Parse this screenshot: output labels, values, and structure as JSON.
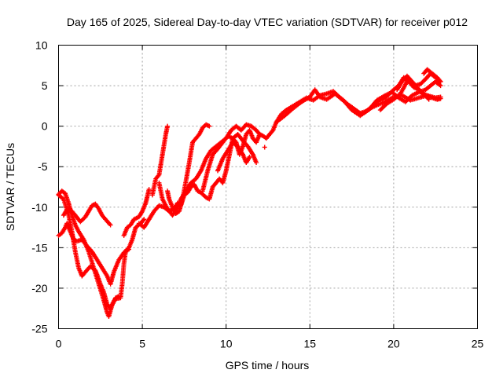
{
  "chart_data": {
    "type": "scatter",
    "title": "Day 165 of 2025, Sidereal Day-to-day VTEC variation (SDTVAR) for receiver p012",
    "xlabel": "GPS time / hours",
    "ylabel": "SDTVAR / TECUs",
    "xlim": [
      0,
      25
    ],
    "ylim": [
      -25,
      10
    ],
    "xticks": [
      0,
      5,
      10,
      15,
      20,
      25
    ],
    "yticks": [
      -25,
      -20,
      -15,
      -10,
      -5,
      0,
      5,
      10
    ],
    "grid": true,
    "marker": "+",
    "color": "#ff0000",
    "series": [
      {
        "tracks": [
          [
            [
              0.0,
              -8.4
            ],
            [
              0.2,
              -8.0
            ],
            [
              0.4,
              -8.3
            ],
            [
              0.6,
              -9.5
            ],
            [
              0.8,
              -11.0
            ],
            [
              1.0,
              -12.2
            ],
            [
              1.2,
              -13.0
            ],
            [
              1.5,
              -14.0
            ],
            [
              1.8,
              -15.5
            ],
            [
              2.1,
              -17.5
            ],
            [
              2.4,
              -19.5
            ],
            [
              2.7,
              -21.5
            ],
            [
              2.9,
              -23.0
            ],
            [
              3.0,
              -23.5
            ],
            [
              3.2,
              -22.0
            ],
            [
              3.4,
              -21.3
            ],
            [
              3.7,
              -21.2
            ],
            [
              3.8,
              -19.5
            ],
            [
              3.9,
              -17.0
            ],
            [
              4.0,
              -15.5
            ],
            [
              4.2,
              -15.2
            ]
          ],
          [
            [
              0.0,
              -8.5
            ],
            [
              0.3,
              -9.0
            ],
            [
              0.6,
              -11.0
            ],
            [
              0.8,
              -13.0
            ],
            [
              1.0,
              -15.5
            ],
            [
              1.2,
              -17.5
            ],
            [
              1.4,
              -18.5
            ],
            [
              1.6,
              -18.0
            ],
            [
              1.9,
              -17.3
            ],
            [
              2.2,
              -17.8
            ],
            [
              2.5,
              -19.5
            ],
            [
              2.7,
              -20.5
            ],
            [
              2.9,
              -22.0
            ],
            [
              3.1,
              -22.5
            ],
            [
              3.4,
              -21.2
            ],
            [
              3.6,
              -21.0
            ]
          ],
          [
            [
              0.0,
              -13.5
            ],
            [
              0.2,
              -13.2
            ],
            [
              0.4,
              -12.5
            ],
            [
              0.5,
              -12.0
            ],
            [
              0.7,
              -13.0
            ],
            [
              0.9,
              -14.0
            ],
            [
              1.1,
              -14.2
            ],
            [
              1.4,
              -14.0
            ],
            [
              1.7,
              -14.8
            ],
            [
              2.0,
              -15.5
            ],
            [
              2.3,
              -16.5
            ],
            [
              2.6,
              -17.5
            ],
            [
              2.9,
              -18.5
            ],
            [
              3.1,
              -19.5
            ],
            [
              3.3,
              -18.0
            ],
            [
              3.6,
              -16.5
            ],
            [
              3.9,
              -15.6
            ],
            [
              4.2,
              -15.0
            ],
            [
              4.4,
              -14.0
            ],
            [
              4.6,
              -12.5
            ],
            [
              4.9,
              -12.0
            ],
            [
              5.1,
              -11.5
            ]
          ],
          [
            [
              0.3,
              -11.0
            ],
            [
              0.5,
              -10.3
            ],
            [
              0.8,
              -10.5
            ],
            [
              1.0,
              -11.0
            ],
            [
              1.3,
              -11.8
            ],
            [
              1.6,
              -11.2
            ],
            [
              1.8,
              -10.5
            ],
            [
              2.0,
              -9.8
            ],
            [
              2.2,
              -9.6
            ],
            [
              2.4,
              -10.2
            ],
            [
              2.6,
              -11.0
            ],
            [
              2.8,
              -11.5
            ],
            [
              3.1,
              -12.2
            ]
          ],
          [
            [
              3.9,
              -13.5
            ],
            [
              4.1,
              -12.5
            ],
            [
              4.3,
              -12.2
            ],
            [
              4.5,
              -11.5
            ],
            [
              4.8,
              -11.2
            ],
            [
              5.0,
              -10.5
            ],
            [
              5.2,
              -9.5
            ],
            [
              5.4,
              -7.8
            ]
          ],
          [
            [
              4.8,
              -12.0
            ],
            [
              5.1,
              -12.5
            ],
            [
              5.4,
              -11.5
            ],
            [
              5.7,
              -10.5
            ],
            [
              6.0,
              -9.8
            ],
            [
              6.3,
              -10.0
            ],
            [
              6.6,
              -10.5
            ],
            [
              6.9,
              -10.2
            ],
            [
              7.1,
              -9.5
            ],
            [
              7.3,
              -9.8
            ],
            [
              7.5,
              -8.5
            ],
            [
              7.7,
              -8.2
            ],
            [
              7.9,
              -7.5
            ],
            [
              8.1,
              -7.2
            ],
            [
              8.3,
              -8.0
            ],
            [
              8.5,
              -8.2
            ],
            [
              8.8,
              -8.8
            ],
            [
              9.0,
              -9.0
            ],
            [
              9.2,
              -7.5
            ],
            [
              9.4,
              -7.0
            ],
            [
              9.6,
              -6.5
            ],
            [
              9.8,
              -7.0
            ],
            [
              10.0,
              -5.5
            ],
            [
              10.2,
              -3.5
            ],
            [
              10.4,
              -1.5
            ],
            [
              10.6,
              -2.0
            ],
            [
              10.8,
              -3.5
            ],
            [
              11.0,
              -2.5
            ],
            [
              11.2,
              -1.0
            ],
            [
              11.4,
              -0.5
            ],
            [
              11.6,
              -1.5
            ],
            [
              11.8,
              -2.0
            ],
            [
              12.0,
              -1.0
            ],
            [
              12.2,
              -1.2
            ],
            [
              12.4,
              -1.5
            ],
            [
              12.6,
              -1.0
            ],
            [
              12.8,
              -0.5
            ],
            [
              13.0,
              0.5
            ],
            [
              13.3,
              1.5
            ],
            [
              13.6,
              2.0
            ],
            [
              14.0,
              2.5
            ],
            [
              14.4,
              3.0
            ],
            [
              14.8,
              3.5
            ],
            [
              15.2,
              3.2
            ],
            [
              15.6,
              3.8
            ],
            [
              16.0,
              4.0
            ],
            [
              16.4,
              4.3
            ],
            [
              16.8,
              3.5
            ],
            [
              17.2,
              2.8
            ],
            [
              17.6,
              2.2
            ],
            [
              18.0,
              1.6
            ],
            [
              18.3,
              1.8
            ],
            [
              18.6,
              2.2
            ],
            [
              19.0,
              2.6
            ],
            [
              19.5,
              3.0
            ],
            [
              20.0,
              3.6
            ],
            [
              20.5,
              3.8
            ],
            [
              21.0,
              3.2
            ],
            [
              21.5,
              3.5
            ],
            [
              22.0,
              3.8
            ],
            [
              22.5,
              3.5
            ],
            [
              22.8,
              3.6
            ]
          ],
          [
            [
              5.6,
              -8.5
            ],
            [
              5.8,
              -6.5
            ],
            [
              6.0,
              -6.0
            ],
            [
              6.2,
              -3.5
            ],
            [
              6.4,
              -1.0
            ],
            [
              6.5,
              0.0
            ]
          ],
          [
            [
              6.5,
              -8.0
            ],
            [
              6.6,
              -9.0
            ],
            [
              6.8,
              -10.0
            ],
            [
              7.0,
              -10.8
            ],
            [
              7.2,
              -10.5
            ],
            [
              7.4,
              -9.0
            ],
            [
              7.6,
              -6.8
            ],
            [
              7.8,
              -4.5
            ],
            [
              8.0,
              -2.0
            ],
            [
              8.2,
              -1.5
            ],
            [
              8.4,
              -1.0
            ],
            [
              8.6,
              -0.2
            ],
            [
              8.8,
              0.2
            ],
            [
              9.0,
              0.0
            ]
          ],
          [
            [
              6.0,
              -7.0
            ],
            [
              6.2,
              -9.0
            ],
            [
              6.5,
              -10.2
            ],
            [
              6.8,
              -11.0
            ],
            [
              7.0,
              -10.5
            ],
            [
              7.3,
              -9.0
            ],
            [
              7.6,
              -8.0
            ],
            [
              7.9,
              -7.0
            ],
            [
              8.2,
              -6.5
            ],
            [
              8.5,
              -5.5
            ],
            [
              8.8,
              -4.0
            ],
            [
              9.1,
              -3.0
            ],
            [
              9.4,
              -2.5
            ],
            [
              9.7,
              -2.0
            ],
            [
              10.0,
              -1.5
            ],
            [
              10.3,
              -0.5
            ],
            [
              10.6,
              0.0
            ],
            [
              10.9,
              -0.5
            ],
            [
              11.2,
              0.2
            ],
            [
              11.5,
              0.0
            ],
            [
              11.8,
              -0.5
            ],
            [
              12.0,
              -1.0
            ]
          ],
          [
            [
              8.6,
              -8.0
            ],
            [
              8.9,
              -5.5
            ],
            [
              9.2,
              -3.5
            ],
            [
              9.5,
              -2.8
            ],
            [
              9.8,
              -2.0
            ],
            [
              10.1,
              -1.2
            ],
            [
              10.4,
              -1.5
            ],
            [
              10.7,
              -1.0
            ],
            [
              11.0,
              -1.8
            ],
            [
              11.3,
              -2.5
            ],
            [
              11.6,
              -3.5
            ],
            [
              11.8,
              -4.5
            ]
          ],
          [
            [
              9.5,
              -5.5
            ],
            [
              9.8,
              -4.0
            ],
            [
              10.1,
              -3.0
            ],
            [
              10.4,
              -2.0
            ],
            [
              10.7,
              -2.5
            ],
            [
              11.0,
              -3.5
            ],
            [
              11.2,
              -4.5
            ],
            [
              11.4,
              -3.8
            ]
          ],
          [
            [
              12.3,
              -2.6
            ]
          ],
          [
            [
              13.0,
              0.5
            ],
            [
              13.5,
              1.3
            ],
            [
              14.0,
              2.2
            ],
            [
              14.5,
              3.0
            ],
            [
              15.0,
              3.6
            ],
            [
              15.3,
              4.5
            ],
            [
              15.6,
              3.6
            ],
            [
              16.0,
              3.3
            ],
            [
              16.5,
              4.0
            ],
            [
              17.0,
              3.2
            ],
            [
              17.5,
              2.0
            ],
            [
              18.0,
              1.3
            ],
            [
              18.5,
              2.0
            ],
            [
              19.0,
              3.0
            ],
            [
              19.5,
              3.5
            ],
            [
              20.0,
              4.5
            ],
            [
              20.3,
              5.0
            ],
            [
              20.6,
              6.0
            ],
            [
              20.9,
              5.5
            ],
            [
              21.2,
              4.8
            ],
            [
              21.5,
              4.5
            ],
            [
              21.8,
              4.0
            ],
            [
              22.1,
              3.3
            ]
          ],
          [
            [
              19.2,
              2.0
            ],
            [
              19.6,
              2.8
            ],
            [
              20.0,
              3.3
            ],
            [
              20.4,
              4.0
            ],
            [
              20.8,
              5.5
            ],
            [
              21.0,
              5.5
            ],
            [
              21.3,
              5.0
            ],
            [
              21.6,
              5.2
            ],
            [
              21.9,
              5.8
            ],
            [
              22.2,
              6.5
            ],
            [
              22.5,
              6.0
            ],
            [
              22.8,
              5.5
            ]
          ],
          [
            [
              18.5,
              2.0
            ],
            [
              19.0,
              3.2
            ],
            [
              19.5,
              3.8
            ],
            [
              19.9,
              4.2
            ],
            [
              20.3,
              3.5
            ],
            [
              20.7,
              3.0
            ],
            [
              21.1,
              3.8
            ],
            [
              21.5,
              4.2
            ],
            [
              21.9,
              4.5
            ],
            [
              22.2,
              5.0
            ],
            [
              22.5,
              5.5
            ],
            [
              22.8,
              5.0
            ]
          ],
          [
            [
              20.2,
              4.5
            ],
            [
              20.5,
              5.5
            ],
            [
              20.8,
              6.2
            ],
            [
              21.1,
              5.5
            ],
            [
              21.4,
              4.8
            ],
            [
              21.7,
              4.0
            ],
            [
              22.0,
              3.8
            ],
            [
              22.3,
              3.5
            ],
            [
              22.6,
              3.3
            ],
            [
              22.8,
              3.4
            ]
          ],
          [
            [
              21.8,
              6.5
            ],
            [
              22.0,
              7.0
            ],
            [
              22.3,
              6.5
            ],
            [
              22.6,
              6.0
            ],
            [
              22.8,
              5.5
            ]
          ]
        ]
      }
    ]
  }
}
